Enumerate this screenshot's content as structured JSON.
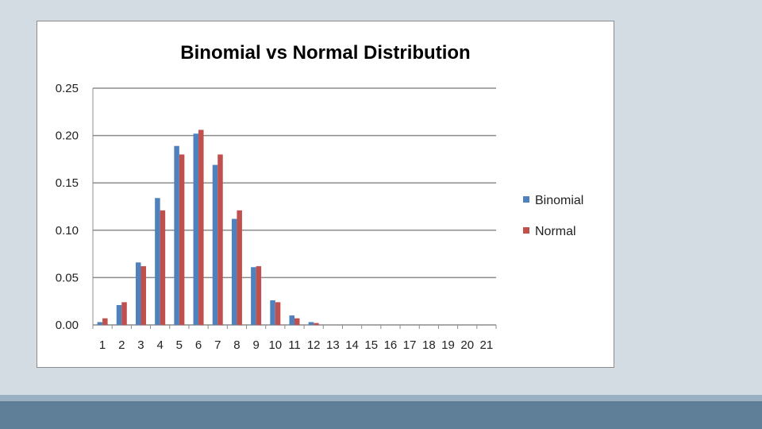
{
  "chart_data": {
    "type": "bar",
    "title": "Binomial vs Normal Distribution",
    "xlabel": "",
    "ylabel": "",
    "categories": [
      "1",
      "2",
      "3",
      "4",
      "5",
      "6",
      "7",
      "8",
      "9",
      "10",
      "11",
      "12",
      "13",
      "14",
      "15",
      "16",
      "17",
      "18",
      "19",
      "20",
      "21"
    ],
    "ylim": [
      0,
      0.25
    ],
    "yticks": [
      "0.00",
      "0.05",
      "0.10",
      "0.15",
      "0.20",
      "0.25"
    ],
    "grid": true,
    "legend_position": "right",
    "series": [
      {
        "name": "Binomial",
        "color": "#4f81bd",
        "values": [
          0.003,
          0.021,
          0.066,
          0.134,
          0.189,
          0.202,
          0.169,
          0.112,
          0.061,
          0.026,
          0.01,
          0.003,
          0,
          0,
          0,
          0,
          0,
          0,
          0,
          0,
          0
        ]
      },
      {
        "name": "Normal",
        "color": "#c0504d",
        "values": [
          0.007,
          0.024,
          0.062,
          0.121,
          0.18,
          0.206,
          0.18,
          0.121,
          0.062,
          0.024,
          0.007,
          0.002,
          0,
          0,
          0,
          0,
          0,
          0,
          0,
          0,
          0
        ]
      }
    ]
  },
  "colors": {
    "background": "#d3dce3",
    "footer_bar": "#5f7f98",
    "footer_light": "#9ab1c3",
    "gridline": "#8c8c8c"
  }
}
